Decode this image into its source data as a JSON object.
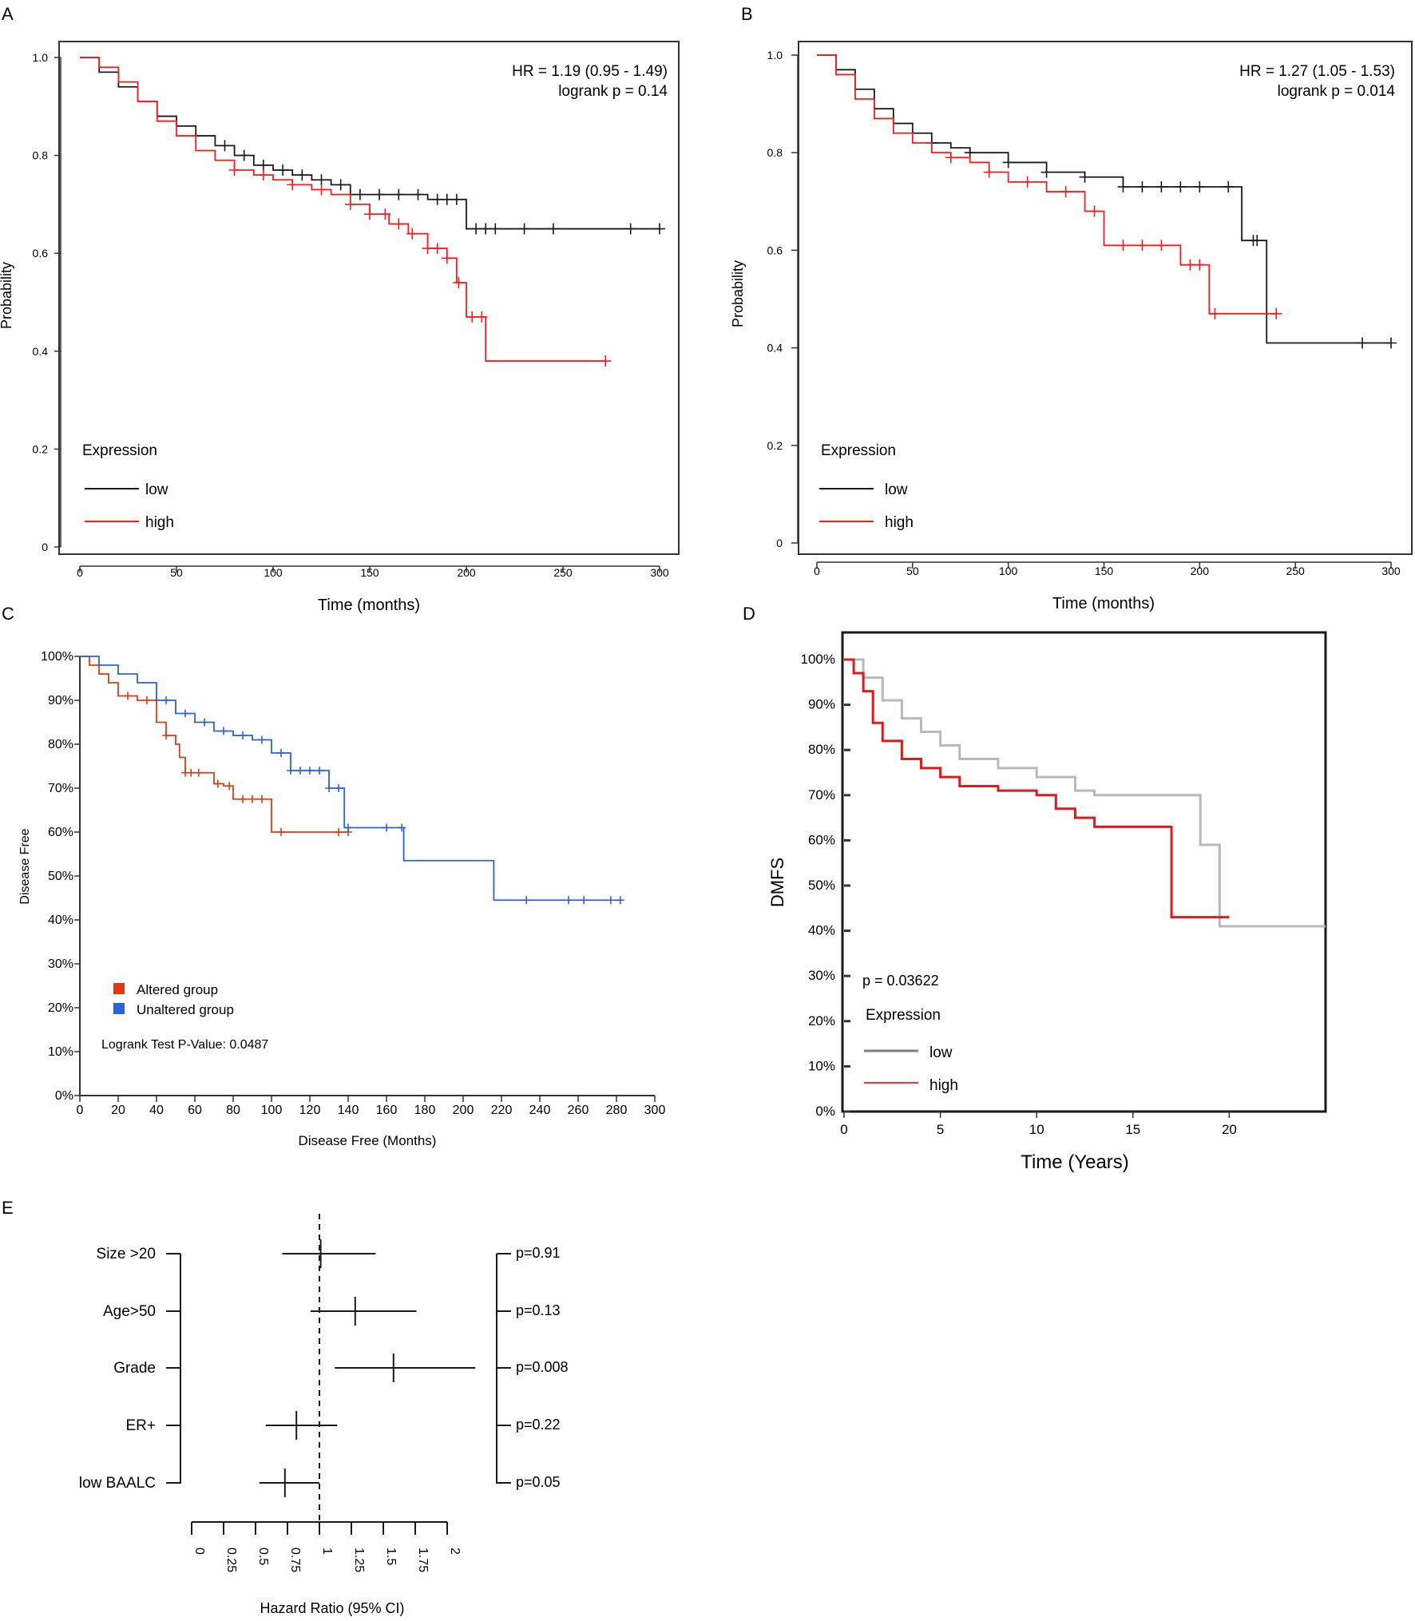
{
  "colors": {
    "low": "#1a1a1a",
    "high": "#ff1a1a",
    "altered": "#e03a12",
    "unaltered": "#2b63d6",
    "d_low": "#b9b9b9",
    "d_high": "#e01a1a",
    "axis": "#333333"
  },
  "chart_data": [
    {
      "panel": "A",
      "type": "line",
      "xlabel": "Time (months)",
      "ylabel": "Probability",
      "xlim": [
        0,
        300
      ],
      "ylim": [
        0,
        1
      ],
      "xticks": [
        0,
        50,
        100,
        150,
        200,
        250,
        300
      ],
      "yticks": [
        0,
        0.2,
        0.4,
        0.6,
        0.8,
        1.0
      ],
      "ytick_labels": [
        "0",
        "0.2",
        "0.4",
        "0.6",
        "0.8",
        "1.0"
      ],
      "annotation": {
        "hr": "HR = 1.19 (0.95 - 1.49)",
        "p": "logrank p = 0.14"
      },
      "legend_title": "Expression",
      "series": [
        {
          "name": "low",
          "color_key": "low",
          "x": [
            0,
            10,
            20,
            30,
            40,
            50,
            60,
            70,
            80,
            90,
            100,
            110,
            120,
            130,
            140,
            160,
            180,
            200,
            200,
            210,
            250,
            300
          ],
          "y": [
            1.0,
            0.97,
            0.94,
            0.91,
            0.88,
            0.86,
            0.84,
            0.82,
            0.8,
            0.78,
            0.77,
            0.76,
            0.75,
            0.74,
            0.72,
            0.72,
            0.71,
            0.71,
            0.65,
            0.65,
            0.65,
            0.65
          ],
          "censor": [
            75,
            85,
            95,
            105,
            115,
            125,
            135,
            145,
            155,
            165,
            175,
            185,
            190,
            195,
            205,
            210,
            215,
            230,
            245,
            285,
            300
          ]
        },
        {
          "name": "high",
          "color_key": "high",
          "x": [
            0,
            10,
            20,
            30,
            40,
            50,
            60,
            70,
            80,
            90,
            100,
            110,
            120,
            130,
            140,
            150,
            160,
            170,
            180,
            190,
            195,
            200,
            205,
            210,
            272
          ],
          "y": [
            1.0,
            0.98,
            0.95,
            0.91,
            0.87,
            0.84,
            0.81,
            0.79,
            0.77,
            0.76,
            0.75,
            0.74,
            0.73,
            0.72,
            0.7,
            0.68,
            0.66,
            0.64,
            0.61,
            0.59,
            0.54,
            0.47,
            0.47,
            0.38,
            0.38
          ],
          "censor": [
            80,
            95,
            110,
            125,
            140,
            150,
            158,
            165,
            172,
            180,
            185,
            190,
            196,
            203,
            208,
            272
          ]
        }
      ]
    },
    {
      "panel": "B",
      "type": "line",
      "xlabel": "Time (months)",
      "ylabel": "Probability",
      "xlim": [
        0,
        300
      ],
      "ylim": [
        0,
        1
      ],
      "xticks": [
        0,
        50,
        100,
        150,
        200,
        250,
        300
      ],
      "yticks": [
        0,
        0.2,
        0.4,
        0.6,
        0.8,
        1.0
      ],
      "ytick_labels": [
        "0",
        "0.2",
        "0.4",
        "0.6",
        "0.8",
        "1.0"
      ],
      "annotation": {
        "hr": "HR = 1.27 (1.05 - 1.53)",
        "p": "logrank p = 0.014"
      },
      "legend_title": "Expression",
      "series": [
        {
          "name": "low",
          "color_key": "low",
          "x": [
            0,
            10,
            20,
            30,
            40,
            50,
            60,
            70,
            80,
            100,
            120,
            140,
            160,
            180,
            200,
            222,
            222,
            235,
            235,
            300
          ],
          "y": [
            1.0,
            0.97,
            0.93,
            0.89,
            0.86,
            0.84,
            0.82,
            0.81,
            0.8,
            0.78,
            0.76,
            0.75,
            0.73,
            0.73,
            0.73,
            0.73,
            0.62,
            0.62,
            0.41,
            0.41
          ],
          "censor": [
            60,
            80,
            100,
            120,
            140,
            160,
            170,
            180,
            190,
            200,
            215,
            228,
            230,
            285,
            300
          ]
        },
        {
          "name": "high",
          "color_key": "high",
          "x": [
            0,
            10,
            20,
            30,
            40,
            50,
            60,
            70,
            80,
            90,
            100,
            120,
            140,
            150,
            155,
            190,
            190,
            205,
            205,
            240
          ],
          "y": [
            1.0,
            0.96,
            0.91,
            0.87,
            0.84,
            0.82,
            0.8,
            0.79,
            0.78,
            0.76,
            0.74,
            0.72,
            0.68,
            0.61,
            0.61,
            0.61,
            0.57,
            0.57,
            0.47,
            0.47
          ],
          "censor": [
            70,
            90,
            110,
            130,
            145,
            160,
            170,
            180,
            195,
            200,
            208,
            240
          ]
        }
      ]
    },
    {
      "panel": "C",
      "type": "line",
      "xlabel": "Disease Free (Months)",
      "ylabel": "Disease Free",
      "xlim": [
        0,
        300
      ],
      "ylim": [
        0,
        100
      ],
      "xticks": [
        0,
        20,
        40,
        60,
        80,
        100,
        120,
        140,
        160,
        180,
        200,
        220,
        240,
        260,
        280,
        300
      ],
      "yticks": [
        0,
        10,
        20,
        30,
        40,
        50,
        60,
        70,
        80,
        90,
        100
      ],
      "ytick_labels": [
        "0%",
        "10%",
        "20%",
        "30%",
        "40%",
        "50%",
        "60%",
        "70%",
        "80%",
        "90%",
        "100%"
      ],
      "legend": [
        "Altered group",
        "Unaltered group"
      ],
      "annotation": "Logrank Test P-Value: 0.0487",
      "series": [
        {
          "name": "Altered group",
          "color_key": "altered",
          "x": [
            0,
            5,
            10,
            15,
            20,
            30,
            40,
            45,
            50,
            52,
            55,
            65,
            70,
            75,
            80,
            100,
            100,
            140
          ],
          "y": [
            100,
            98,
            96,
            94,
            91,
            90,
            85,
            82,
            80,
            77,
            73.5,
            73.5,
            71,
            70.5,
            67.5,
            67.5,
            60,
            60
          ],
          "censor": [
            25,
            35,
            45,
            55,
            58,
            62,
            72,
            78,
            85,
            90,
            95,
            105,
            135,
            140
          ]
        },
        {
          "name": "Unaltered group",
          "color_key": "unaltered",
          "x": [
            0,
            10,
            20,
            30,
            40,
            50,
            60,
            70,
            80,
            90,
            100,
            110,
            125,
            130,
            137,
            138,
            168,
            169,
            215,
            216,
            282
          ],
          "y": [
            100,
            98,
            96,
            94,
            90,
            87,
            85,
            83,
            82,
            81,
            78,
            74,
            74,
            70,
            70,
            61,
            61,
            53.5,
            53.5,
            44.5,
            44.5
          ],
          "censor": [
            45,
            55,
            65,
            75,
            85,
            95,
            105,
            110,
            115,
            120,
            125,
            130,
            135,
            140,
            160,
            168,
            233,
            255,
            263,
            277,
            282
          ]
        }
      ]
    },
    {
      "panel": "D",
      "type": "line",
      "xlabel": "Time (Years)",
      "ylabel": "DMFS",
      "xlim": [
        0,
        25
      ],
      "ylim": [
        0,
        100
      ],
      "xticks": [
        0,
        5,
        10,
        15,
        20
      ],
      "yticks": [
        0,
        10,
        20,
        30,
        40,
        50,
        60,
        70,
        80,
        90,
        100
      ],
      "ytick_labels": [
        "0%",
        "10%",
        "20%",
        "30%",
        "40%",
        "50%",
        "60%",
        "70%",
        "80%",
        "90%",
        "100%"
      ],
      "annotation": "p = 0.03622",
      "legend_title": "Expression",
      "series": [
        {
          "name": "low",
          "color_key": "d_low",
          "x": [
            0,
            1,
            2,
            3,
            4,
            5,
            6,
            8,
            10,
            12,
            13,
            16,
            18.5,
            18.5,
            19.5,
            19.5,
            25
          ],
          "y": [
            100,
            96,
            91,
            87,
            84,
            81,
            78,
            76,
            74,
            71,
            70,
            70,
            68,
            59,
            59,
            41,
            41
          ]
        },
        {
          "name": "high",
          "color_key": "d_high",
          "x": [
            0,
            0.5,
            1,
            1.5,
            2,
            3,
            4,
            5,
            6,
            8,
            10,
            11,
            12,
            13,
            16,
            17,
            17,
            20
          ],
          "y": [
            100,
            97,
            93,
            86,
            82,
            78,
            76,
            74,
            72,
            71,
            70,
            67,
            65,
            63,
            63,
            63,
            43,
            43
          ]
        }
      ]
    },
    {
      "panel": "E",
      "type": "forest",
      "xlabel": "Hazard Ratio (95% CI)",
      "xlim": [
        0,
        2
      ],
      "xticks": [
        0,
        0.25,
        0.5,
        0.75,
        1,
        1.25,
        1.5,
        1.75,
        2
      ],
      "xtick_labels": [
        "0",
        "0.25",
        "0.5",
        "0.75",
        "1",
        "1.25",
        "1.5",
        "1.75",
        "2"
      ],
      "reference": 1,
      "rows": [
        {
          "label": "Size >20",
          "hr": 1.01,
          "lo": 0.71,
          "hi": 1.44,
          "p": "p=0.91"
        },
        {
          "label": "Age>50",
          "hr": 1.28,
          "lo": 0.93,
          "hi": 1.76,
          "p": "p=0.13"
        },
        {
          "label": "Grade",
          "hr": 1.58,
          "lo": 1.12,
          "hi": 2.22,
          "p": "p=0.008"
        },
        {
          "label": "ER+",
          "hr": 0.82,
          "lo": 0.58,
          "hi": 1.14,
          "p": "p=0.22"
        },
        {
          "label": "low BAALC",
          "hr": 0.73,
          "lo": 0.53,
          "hi": 1.0,
          "p": "p=0.05"
        }
      ]
    }
  ]
}
